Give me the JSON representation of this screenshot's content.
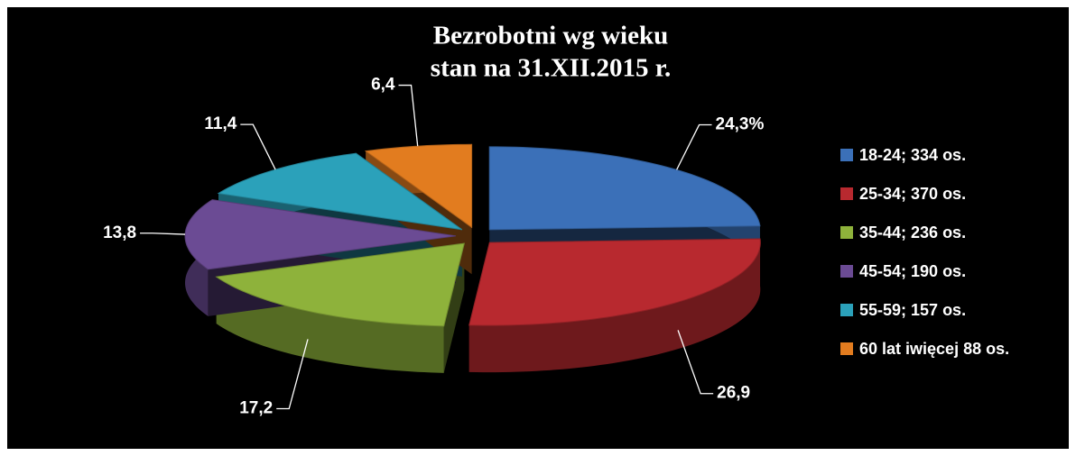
{
  "chart_data": {
    "type": "pie",
    "title": "Bezrobotni wg wieku",
    "subtitle": "stan na 31.XII.2015 r.",
    "categories": [
      "18-24; 334 os.",
      "25-34; 370 os.",
      "35-44; 236 os.",
      "45-54; 190 os.",
      "55-59; 157 os.",
      "60 lat iwięcej 88 os."
    ],
    "values": [
      24.3,
      26.9,
      17.2,
      13.8,
      11.4,
      6.4
    ],
    "value_labels": [
      "24,3%",
      "26,9",
      "17,2",
      "13,8",
      "11,4",
      "6,4"
    ],
    "colors": [
      "#3b70b8",
      "#b8292f",
      "#8eb23b",
      "#6b4b94",
      "#2ba1ba",
      "#e27c1f"
    ],
    "legend": "right"
  }
}
